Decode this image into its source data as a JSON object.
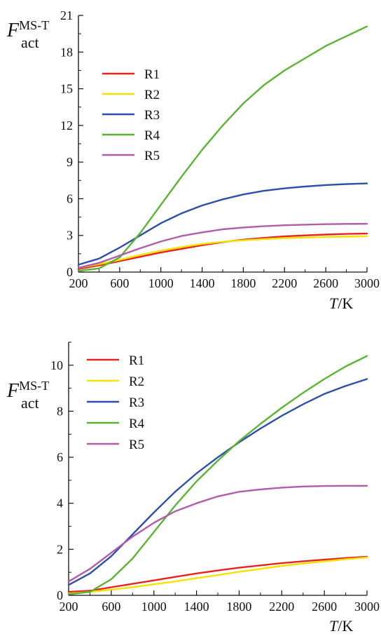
{
  "chart_data": [
    {
      "type": "line",
      "x_ticks": [
        200,
        600,
        1000,
        1400,
        1800,
        2200,
        2600,
        3000
      ],
      "y_ticks": [
        0,
        3,
        6,
        9,
        12,
        15,
        18,
        21
      ],
      "xlim": [
        200,
        3000
      ],
      "ylim": [
        0,
        21
      ],
      "ylabel": {
        "main": "F",
        "sup": "MS-T",
        "sub": "act"
      },
      "xlabel": {
        "var": "T",
        "unit": "/K"
      },
      "legend_position": "top-left",
      "series": [
        {
          "name": "R1",
          "color": "#e8231e",
          "points": [
            [
              200,
              0.25
            ],
            [
              400,
              0.55
            ],
            [
              600,
              0.9
            ],
            [
              800,
              1.25
            ],
            [
              1000,
              1.6
            ],
            [
              1200,
              1.9
            ],
            [
              1400,
              2.2
            ],
            [
              1600,
              2.45
            ],
            [
              1800,
              2.65
            ],
            [
              2000,
              2.8
            ],
            [
              2200,
              2.92
            ],
            [
              2400,
              3.0
            ],
            [
              2600,
              3.07
            ],
            [
              2800,
              3.12
            ],
            [
              3000,
              3.15
            ]
          ]
        },
        {
          "name": "R2",
          "color": "#f2e200",
          "points": [
            [
              200,
              0.35
            ],
            [
              400,
              0.65
            ],
            [
              600,
              1.0
            ],
            [
              800,
              1.4
            ],
            [
              1000,
              1.75
            ],
            [
              1200,
              2.05
            ],
            [
              1400,
              2.3
            ],
            [
              1600,
              2.48
            ],
            [
              1800,
              2.6
            ],
            [
              2000,
              2.7
            ],
            [
              2200,
              2.78
            ],
            [
              2400,
              2.83
            ],
            [
              2600,
              2.87
            ],
            [
              2800,
              2.9
            ],
            [
              3000,
              2.93
            ]
          ]
        },
        {
          "name": "R3",
          "color": "#2e4fa8",
          "points": [
            [
              200,
              0.6
            ],
            [
              400,
              1.1
            ],
            [
              600,
              2.0
            ],
            [
              800,
              3.0
            ],
            [
              1000,
              4.0
            ],
            [
              1200,
              4.8
            ],
            [
              1400,
              5.45
            ],
            [
              1600,
              5.95
            ],
            [
              1800,
              6.35
            ],
            [
              2000,
              6.65
            ],
            [
              2200,
              6.85
            ],
            [
              2400,
              7.0
            ],
            [
              2600,
              7.12
            ],
            [
              2800,
              7.2
            ],
            [
              3000,
              7.25
            ]
          ]
        },
        {
          "name": "R4",
          "color": "#5ab332",
          "points": [
            [
              200,
              0.1
            ],
            [
              400,
              0.3
            ],
            [
              600,
              1.2
            ],
            [
              800,
              3.2
            ],
            [
              1000,
              5.5
            ],
            [
              1200,
              7.8
            ],
            [
              1400,
              10.0
            ],
            [
              1600,
              12.0
            ],
            [
              1800,
              13.8
            ],
            [
              2000,
              15.3
            ],
            [
              2200,
              16.5
            ],
            [
              2400,
              17.5
            ],
            [
              2600,
              18.5
            ],
            [
              2800,
              19.3
            ],
            [
              3000,
              20.1
            ]
          ]
        },
        {
          "name": "R5",
          "color": "#b05ca8",
          "points": [
            [
              200,
              0.35
            ],
            [
              400,
              0.75
            ],
            [
              600,
              1.35
            ],
            [
              800,
              1.95
            ],
            [
              1000,
              2.5
            ],
            [
              1200,
              2.95
            ],
            [
              1400,
              3.25
            ],
            [
              1600,
              3.5
            ],
            [
              1800,
              3.65
            ],
            [
              2000,
              3.75
            ],
            [
              2200,
              3.83
            ],
            [
              2400,
              3.88
            ],
            [
              2600,
              3.92
            ],
            [
              2800,
              3.94
            ],
            [
              3000,
              3.95
            ]
          ]
        }
      ]
    },
    {
      "type": "line",
      "x_ticks": [
        200,
        600,
        1000,
        1400,
        1800,
        2200,
        2600,
        3000
      ],
      "y_ticks": [
        0,
        2,
        4,
        6,
        8,
        10
      ],
      "xlim": [
        200,
        3000
      ],
      "ylim": [
        0,
        11
      ],
      "ylabel": {
        "main": "F",
        "sup": "MS-T",
        "sub": "act"
      },
      "xlabel": {
        "var": "T",
        "unit": "/K"
      },
      "legend_position": "top-left",
      "series": [
        {
          "name": "R1",
          "color": "#e8231e",
          "points": [
            [
              200,
              0.15
            ],
            [
              400,
              0.2
            ],
            [
              600,
              0.35
            ],
            [
              800,
              0.5
            ],
            [
              1000,
              0.65
            ],
            [
              1200,
              0.8
            ],
            [
              1400,
              0.95
            ],
            [
              1600,
              1.08
            ],
            [
              1800,
              1.2
            ],
            [
              2000,
              1.3
            ],
            [
              2200,
              1.4
            ],
            [
              2400,
              1.48
            ],
            [
              2600,
              1.55
            ],
            [
              2800,
              1.62
            ],
            [
              3000,
              1.68
            ]
          ]
        },
        {
          "name": "R2",
          "color": "#f2e200",
          "points": [
            [
              200,
              0.08
            ],
            [
              400,
              0.15
            ],
            [
              600,
              0.25
            ],
            [
              800,
              0.35
            ],
            [
              1000,
              0.48
            ],
            [
              1200,
              0.6
            ],
            [
              1400,
              0.75
            ],
            [
              1600,
              0.88
            ],
            [
              1800,
              1.02
            ],
            [
              2000,
              1.15
            ],
            [
              2200,
              1.28
            ],
            [
              2400,
              1.38
            ],
            [
              2600,
              1.48
            ],
            [
              2800,
              1.57
            ],
            [
              3000,
              1.65
            ]
          ]
        },
        {
          "name": "R3",
          "color": "#2e4fa8",
          "points": [
            [
              200,
              0.45
            ],
            [
              400,
              0.95
            ],
            [
              600,
              1.7
            ],
            [
              800,
              2.65
            ],
            [
              1000,
              3.6
            ],
            [
              1200,
              4.5
            ],
            [
              1400,
              5.3
            ],
            [
              1600,
              6.0
            ],
            [
              1800,
              6.65
            ],
            [
              2000,
              7.25
            ],
            [
              2200,
              7.8
            ],
            [
              2400,
              8.3
            ],
            [
              2600,
              8.75
            ],
            [
              2800,
              9.1
            ],
            [
              3000,
              9.4
            ]
          ]
        },
        {
          "name": "R4",
          "color": "#5ab332",
          "points": [
            [
              200,
              0.05
            ],
            [
              400,
              0.15
            ],
            [
              600,
              0.7
            ],
            [
              800,
              1.6
            ],
            [
              1000,
              2.75
            ],
            [
              1200,
              3.9
            ],
            [
              1400,
              4.95
            ],
            [
              1600,
              5.85
            ],
            [
              1800,
              6.7
            ],
            [
              2000,
              7.45
            ],
            [
              2200,
              8.15
            ],
            [
              2400,
              8.8
            ],
            [
              2600,
              9.4
            ],
            [
              2800,
              9.95
            ],
            [
              3000,
              10.4
            ]
          ]
        },
        {
          "name": "R5",
          "color": "#b05ca8",
          "points": [
            [
              200,
              0.6
            ],
            [
              400,
              1.15
            ],
            [
              600,
              1.85
            ],
            [
              800,
              2.55
            ],
            [
              1000,
              3.15
            ],
            [
              1200,
              3.65
            ],
            [
              1400,
              4.0
            ],
            [
              1600,
              4.3
            ],
            [
              1800,
              4.5
            ],
            [
              2000,
              4.6
            ],
            [
              2200,
              4.68
            ],
            [
              2400,
              4.73
            ],
            [
              2600,
              4.75
            ],
            [
              2800,
              4.76
            ],
            [
              3000,
              4.76
            ]
          ]
        }
      ]
    }
  ]
}
